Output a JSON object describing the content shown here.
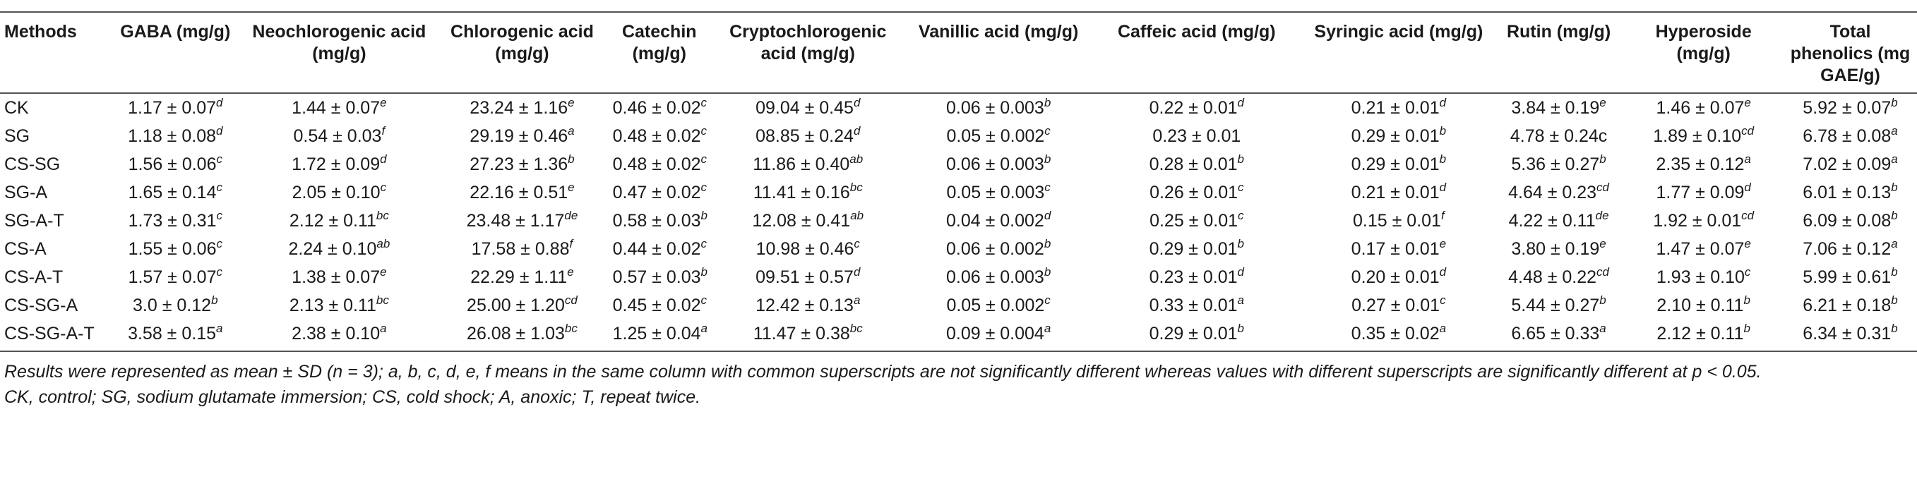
{
  "columns": [
    "Methods",
    "GABA (mg/g)",
    "Neochlorogenic acid (mg/g)",
    "Chlorogenic acid (mg/g)",
    "Catechin (mg/g)",
    "Cryptochlorogenic acid (mg/g)",
    "Vanillic acid (mg/g)",
    "Caffeic acid (mg/g)",
    "Syringic acid (mg/g)",
    "Rutin (mg/g)",
    "Hyperoside (mg/g)",
    "Total phenolics (mg GAE/g)"
  ],
  "rows": [
    {
      "method": "CK",
      "cells": [
        {
          "v": "1.17 ± 0.07",
          "s": "d"
        },
        {
          "v": "1.44 ± 0.07",
          "s": "e"
        },
        {
          "v": "23.24 ± 1.16",
          "s": "e"
        },
        {
          "v": "0.46 ± 0.02",
          "s": "c"
        },
        {
          "v": "09.04 ± 0.45",
          "s": "d"
        },
        {
          "v": "0.06 ± 0.003",
          "s": "b"
        },
        {
          "v": "0.22 ± 0.01",
          "s": "d"
        },
        {
          "v": "0.21 ± 0.01",
          "s": "d"
        },
        {
          "v": "3.84 ± 0.19",
          "s": "e"
        },
        {
          "v": "1.46 ± 0.07",
          "s": "e"
        },
        {
          "v": "5.92 ± 0.07",
          "s": "b"
        }
      ]
    },
    {
      "method": "SG",
      "cells": [
        {
          "v": "1.18 ± 0.08",
          "s": "d"
        },
        {
          "v": "0.54 ± 0.03",
          "s": "f"
        },
        {
          "v": "29.19 ± 0.46",
          "s": "a"
        },
        {
          "v": "0.48 ± 0.02",
          "s": "c"
        },
        {
          "v": "08.85 ± 0.24",
          "s": "d"
        },
        {
          "v": "0.05 ± 0.002",
          "s": "c"
        },
        {
          "v": "0.23 ± 0.01",
          "s": ""
        },
        {
          "v": "0.29 ± 0.01",
          "s": "b"
        },
        {
          "v": "4.78 ± 0.24c",
          "s": ""
        },
        {
          "v": "1.89 ± 0.10",
          "s": "cd"
        },
        {
          "v": "6.78 ± 0.08",
          "s": "a"
        }
      ]
    },
    {
      "method": "CS-SG",
      "cells": [
        {
          "v": "1.56 ± 0.06",
          "s": "c"
        },
        {
          "v": "1.72 ± 0.09",
          "s": "d"
        },
        {
          "v": "27.23 ± 1.36",
          "s": "b"
        },
        {
          "v": "0.48 ± 0.02",
          "s": "c"
        },
        {
          "v": "11.86 ± 0.40",
          "s": "ab"
        },
        {
          "v": "0.06 ± 0.003",
          "s": "b"
        },
        {
          "v": "0.28 ± 0.01",
          "s": "b"
        },
        {
          "v": "0.29 ± 0.01",
          "s": "b"
        },
        {
          "v": "5.36 ± 0.27",
          "s": "b"
        },
        {
          "v": "2.35 ± 0.12",
          "s": "a"
        },
        {
          "v": "7.02 ± 0.09",
          "s": "a"
        }
      ]
    },
    {
      "method": "SG-A",
      "cells": [
        {
          "v": "1.65 ± 0.14",
          "s": "c"
        },
        {
          "v": "2.05 ± 0.10",
          "s": "c"
        },
        {
          "v": "22.16 ± 0.51",
          "s": "e"
        },
        {
          "v": "0.47 ± 0.02",
          "s": "c"
        },
        {
          "v": "11.41 ± 0.16",
          "s": "bc"
        },
        {
          "v": "0.05 ± 0.003",
          "s": "c"
        },
        {
          "v": "0.26 ± 0.01",
          "s": "c"
        },
        {
          "v": "0.21 ± 0.01",
          "s": "d"
        },
        {
          "v": "4.64 ± 0.23",
          "s": "cd"
        },
        {
          "v": "1.77 ± 0.09",
          "s": "d"
        },
        {
          "v": "6.01 ± 0.13",
          "s": "b"
        }
      ]
    },
    {
      "method": "SG-A-T",
      "cells": [
        {
          "v": "1.73 ± 0.31",
          "s": "c"
        },
        {
          "v": "2.12 ± 0.11",
          "s": "bc"
        },
        {
          "v": "23.48 ± 1.17",
          "s": "de"
        },
        {
          "v": "0.58 ± 0.03",
          "s": "b"
        },
        {
          "v": "12.08 ± 0.41",
          "s": "ab"
        },
        {
          "v": "0.04 ± 0.002",
          "s": "d"
        },
        {
          "v": "0.25 ± 0.01",
          "s": "c"
        },
        {
          "v": "0.15 ± 0.01",
          "s": "f"
        },
        {
          "v": "4.22 ± 0.11",
          "s": "de"
        },
        {
          "v": "1.92 ± 0.01",
          "s": "cd"
        },
        {
          "v": "6.09 ± 0.08",
          "s": "b"
        }
      ]
    },
    {
      "method": "CS-A",
      "cells": [
        {
          "v": "1.55 ± 0.06",
          "s": "c"
        },
        {
          "v": "2.24 ± 0.10",
          "s": "ab"
        },
        {
          "v": "17.58 ± 0.88",
          "s": "f"
        },
        {
          "v": "0.44 ± 0.02",
          "s": "c"
        },
        {
          "v": "10.98 ± 0.46",
          "s": "c"
        },
        {
          "v": "0.06 ± 0.002",
          "s": "b"
        },
        {
          "v": "0.29 ± 0.01",
          "s": "b"
        },
        {
          "v": "0.17 ± 0.01",
          "s": "e"
        },
        {
          "v": "3.80 ± 0.19",
          "s": "e"
        },
        {
          "v": "1.47 ± 0.07",
          "s": "e"
        },
        {
          "v": "7.06 ± 0.12",
          "s": "a"
        }
      ]
    },
    {
      "method": "CS-A-T",
      "cells": [
        {
          "v": "1.57 ± 0.07",
          "s": "c"
        },
        {
          "v": "1.38 ± 0.07",
          "s": "e"
        },
        {
          "v": "22.29 ± 1.11",
          "s": "e"
        },
        {
          "v": "0.57 ± 0.03",
          "s": "b"
        },
        {
          "v": "09.51 ± 0.57",
          "s": "d"
        },
        {
          "v": "0.06 ± 0.003",
          "s": "b"
        },
        {
          "v": "0.23 ± 0.01",
          "s": "d"
        },
        {
          "v": "0.20 ± 0.01",
          "s": "d"
        },
        {
          "v": "4.48 ± 0.22",
          "s": "cd"
        },
        {
          "v": "1.93 ± 0.10",
          "s": "c"
        },
        {
          "v": "5.99 ± 0.61",
          "s": "b"
        }
      ]
    },
    {
      "method": "CS-SG-A",
      "cells": [
        {
          "v": "3.0 ± 0.12",
          "s": "b"
        },
        {
          "v": "2.13 ± 0.11",
          "s": "bc"
        },
        {
          "v": "25.00 ± 1.20",
          "s": "cd"
        },
        {
          "v": "0.45 ± 0.02",
          "s": "c"
        },
        {
          "v": "12.42 ± 0.13",
          "s": "a"
        },
        {
          "v": "0.05 ± 0.002",
          "s": "c"
        },
        {
          "v": "0.33 ± 0.01",
          "s": "a"
        },
        {
          "v": "0.27 ± 0.01",
          "s": "c"
        },
        {
          "v": "5.44 ± 0.27",
          "s": "b"
        },
        {
          "v": "2.10 ± 0.11",
          "s": "b"
        },
        {
          "v": "6.21 ± 0.18",
          "s": "b"
        }
      ]
    },
    {
      "method": "CS-SG-A-T",
      "cells": [
        {
          "v": "3.58 ± 0.15",
          "s": "a"
        },
        {
          "v": "2.38 ± 0.10",
          "s": "a"
        },
        {
          "v": "26.08 ± 1.03",
          "s": "bc"
        },
        {
          "v": "1.25 ± 0.04",
          "s": "a"
        },
        {
          "v": "11.47 ± 0.38",
          "s": "bc"
        },
        {
          "v": "0.09 ± 0.004",
          "s": "a"
        },
        {
          "v": "0.29 ± 0.01",
          "s": "b"
        },
        {
          "v": "0.35 ± 0.02",
          "s": "a"
        },
        {
          "v": "6.65 ± 0.33",
          "s": "a"
        },
        {
          "v": "2.12 ± 0.11",
          "s": "b"
        },
        {
          "v": "6.34 ± 0.31",
          "s": "b"
        }
      ]
    }
  ],
  "footnotes": {
    "results": "Results were represented as mean ± SD (n = 3); a, b, c, d, e, f means in the same column with common superscripts are not significantly different whereas values with different superscripts are significantly different at p < 0.05.",
    "abbreviations": "CK, control; SG, sodium glutamate immersion; CS, cold shock; A, anoxic; T, repeat twice."
  }
}
